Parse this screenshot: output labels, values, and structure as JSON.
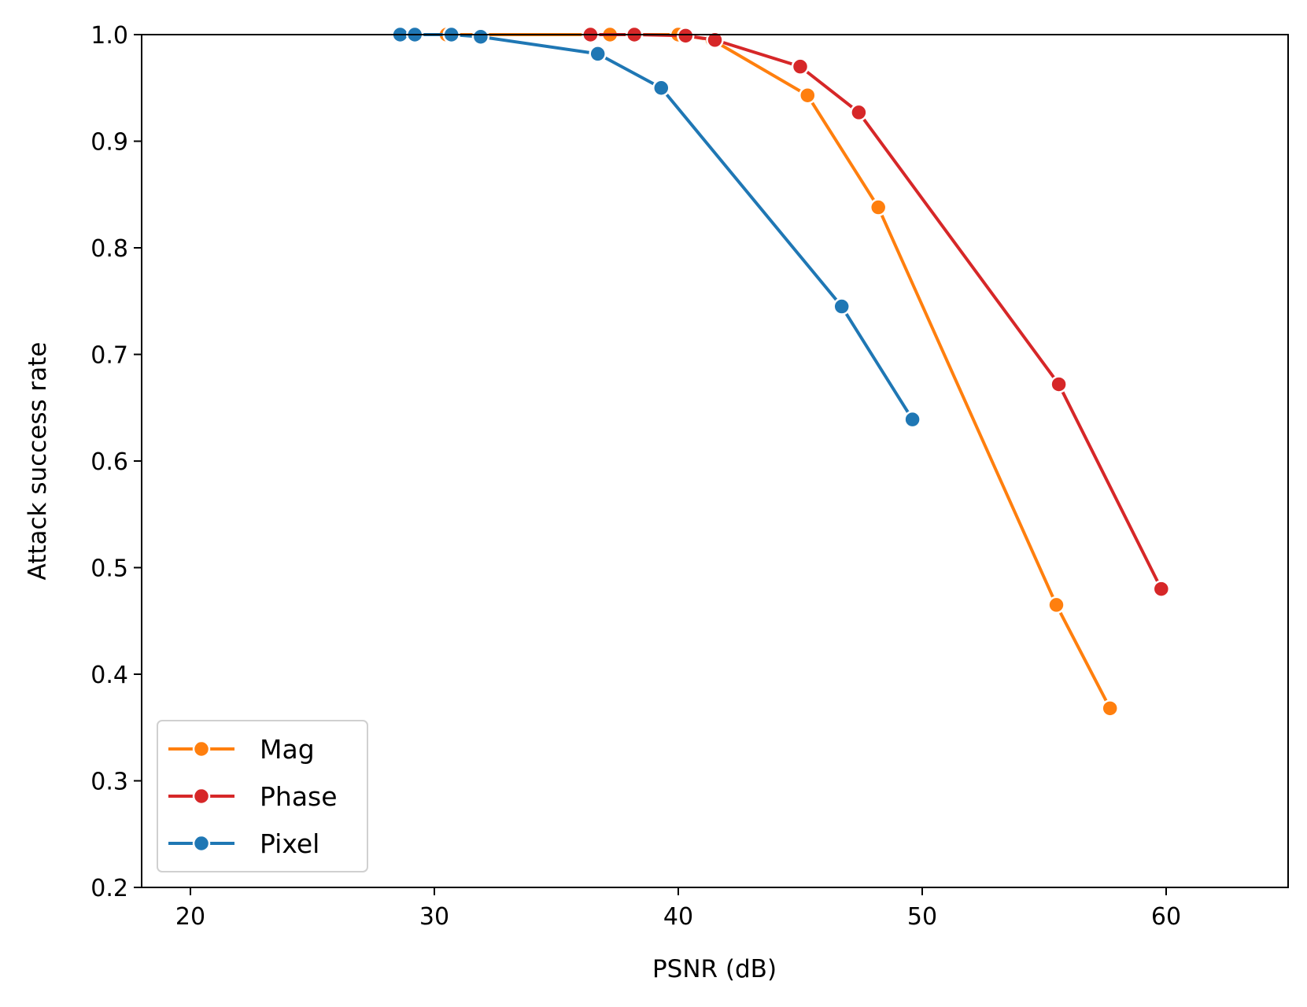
{
  "chart_data": {
    "type": "line",
    "title": "",
    "xlabel": "PSNR (dB)",
    "ylabel": "Attack success rate",
    "xlim": [
      18,
      65
    ],
    "ylim": [
      0.2,
      1.0
    ],
    "xticks": [
      "20",
      "30",
      "40",
      "50",
      "60"
    ],
    "yticks": [
      "0.2",
      "0.3",
      "0.4",
      "0.5",
      "0.6",
      "0.7",
      "0.8",
      "0.9",
      "1.0"
    ],
    "grid": false,
    "legend_position": "lower-left",
    "series": [
      {
        "name": "Mag",
        "color": "#ff7f0e",
        "x": [
          30.5,
          37.2,
          40.0,
          41.4,
          45.3,
          48.2,
          55.5,
          57.7
        ],
        "y": [
          1.0,
          1.0,
          1.0,
          0.995,
          0.943,
          0.838,
          0.465,
          0.368
        ]
      },
      {
        "name": "Phase",
        "color": "#d62728",
        "x": [
          36.4,
          38.2,
          40.3,
          41.5,
          45.0,
          47.4,
          55.6,
          59.8
        ],
        "y": [
          1.0,
          1.0,
          0.999,
          0.995,
          0.97,
          0.927,
          0.672,
          0.48
        ]
      },
      {
        "name": "Pixel",
        "color": "#1f77b4",
        "x": [
          28.6,
          29.2,
          30.7,
          31.9,
          36.7,
          39.3,
          46.7,
          49.6
        ],
        "y": [
          1.0,
          1.0,
          1.0,
          0.998,
          0.982,
          0.95,
          0.745,
          0.639
        ]
      }
    ]
  }
}
